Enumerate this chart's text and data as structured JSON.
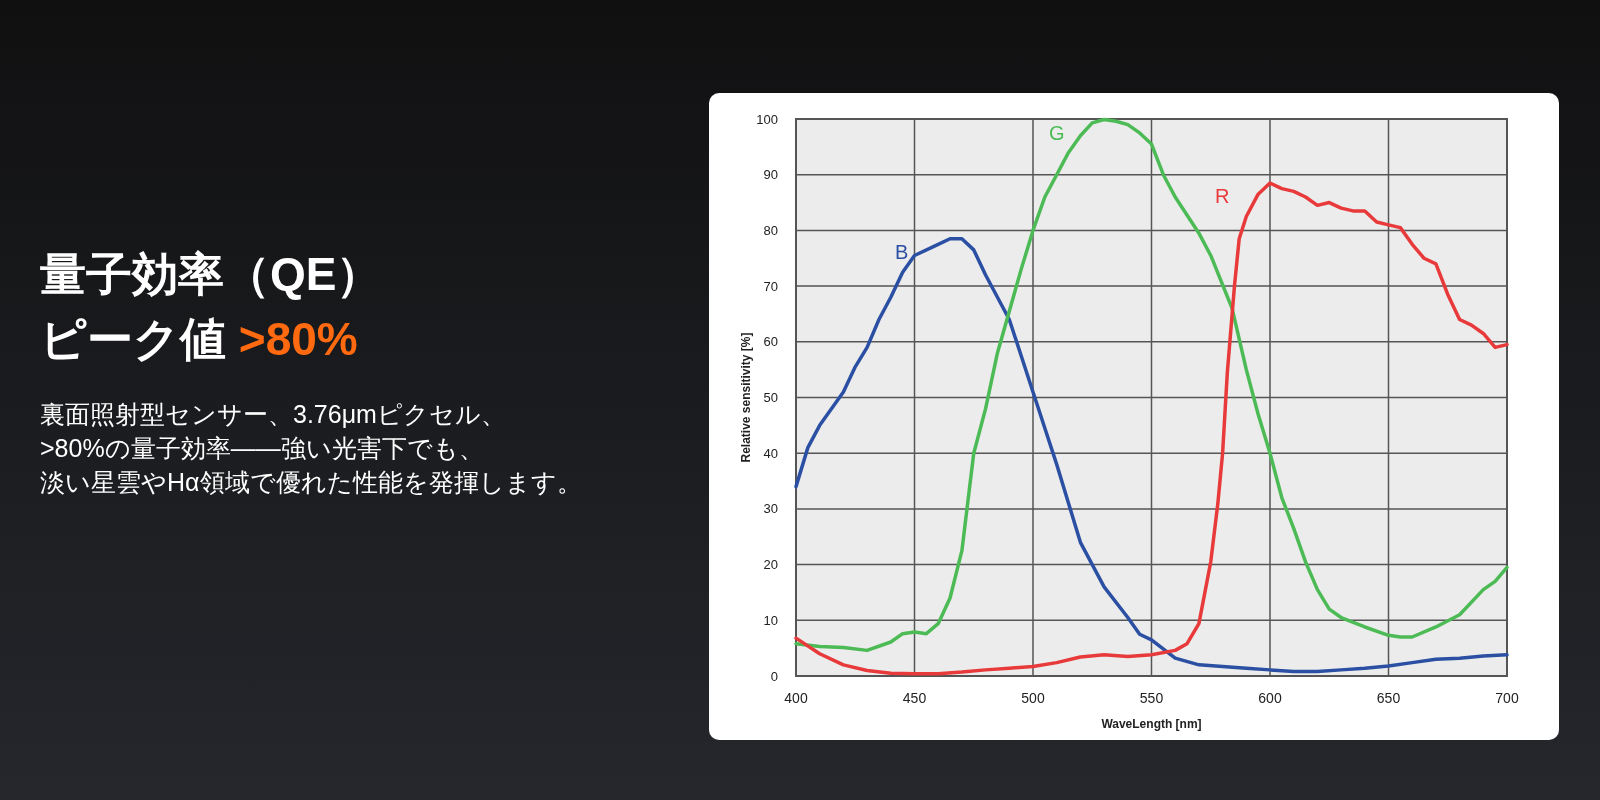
{
  "chart_data": {
    "type": "line",
    "title": "量子効率（QE）",
    "subtitle": "ピーク値 >80%",
    "xlabel": "WaveLength [nm]",
    "ylabel": "Relative sensitivity [%]",
    "annotations": [
      "裏面照射型センサー、3.76μmピクセル、",
      ">80%の量子効率——強い光害下でも、",
      "淡い星雲やHα領域で優れた性能を発揮します。"
    ],
    "xlim": [
      400,
      700
    ],
    "ylim": [
      0,
      100
    ],
    "xticks": [
      400,
      450,
      500,
      550,
      600,
      650,
      700
    ],
    "yticks": [
      0,
      10,
      20,
      30,
      40,
      50,
      60,
      70,
      80,
      90,
      100
    ],
    "grid": true,
    "marker": "none",
    "line_style": "solid",
    "series": [
      {
        "name": "B",
        "color": "#2b50a3",
        "x": [
          400,
          405,
          410,
          420,
          425,
          430,
          435,
          440,
          445,
          450,
          460,
          465,
          470,
          475,
          480,
          490,
          500,
          510,
          520,
          530,
          540,
          545,
          550,
          560,
          570,
          580,
          590,
          600,
          610,
          620,
          630,
          640,
          650,
          660,
          670,
          680,
          690,
          700
        ],
        "values": [
          34,
          41,
          45,
          51,
          55.5,
          59,
          64,
          68,
          72.5,
          75.5,
          77.5,
          78.5,
          78.5,
          76.5,
          72,
          64,
          51,
          38,
          24,
          16,
          10.5,
          7.5,
          6.5,
          3.2,
          2,
          1.7,
          1.4,
          1.1,
          0.8,
          0.8,
          1.1,
          1.4,
          1.8,
          2.4,
          3,
          3.2,
          3.6,
          3.8
        ]
      },
      {
        "name": "G",
        "color": "#4dbb55",
        "x": [
          400,
          410,
          420,
          430,
          440,
          445,
          450,
          455,
          460,
          465,
          470,
          475,
          480,
          485,
          490,
          495,
          500,
          505,
          510,
          515,
          520,
          525,
          530,
          535,
          540,
          545,
          550,
          555,
          560,
          570,
          575,
          584,
          590,
          595,
          600,
          605,
          610,
          615,
          620,
          625,
          630,
          640,
          650,
          655,
          660,
          670,
          680,
          690,
          695,
          700
        ],
        "values": [
          5.8,
          5.3,
          5.1,
          4.6,
          6.1,
          7.6,
          7.9,
          7.6,
          9.4,
          14,
          22.5,
          40,
          48,
          58,
          65.5,
          73,
          80,
          86,
          90,
          94,
          97,
          99.3,
          99.9,
          99.6,
          99,
          97.5,
          95.5,
          90,
          86,
          79.5,
          75.5,
          66,
          55,
          47,
          40,
          32,
          26.5,
          20.5,
          15.5,
          12,
          10.5,
          8.8,
          7.3,
          7,
          7,
          8.8,
          11,
          15.5,
          17,
          19.5
        ]
      },
      {
        "name": "R",
        "color": "#e83a3a",
        "x": [
          400,
          410,
          420,
          430,
          440,
          450,
          460,
          470,
          480,
          490,
          500,
          510,
          520,
          530,
          540,
          550,
          560,
          565,
          570,
          575,
          578,
          580,
          582,
          585,
          587,
          590,
          595,
          600,
          605,
          610,
          615,
          620,
          625,
          630,
          635,
          640,
          645,
          650,
          655,
          660,
          665,
          670,
          675,
          680,
          685,
          690,
          695,
          700
        ],
        "values": [
          6.8,
          4,
          2,
          1,
          0.5,
          0.4,
          0.4,
          0.7,
          1.1,
          1.4,
          1.7,
          2.4,
          3.4,
          3.8,
          3.5,
          3.8,
          4.6,
          5.8,
          9.4,
          20.5,
          31,
          40,
          54.5,
          70,
          78.5,
          82.5,
          86.5,
          88.5,
          87.5,
          87,
          86,
          84.5,
          85,
          84,
          83.5,
          83.5,
          81.5,
          81,
          80.5,
          77.5,
          75,
          74,
          68.5,
          64,
          63,
          61.5,
          59,
          59.5
        ]
      }
    ]
  }
}
